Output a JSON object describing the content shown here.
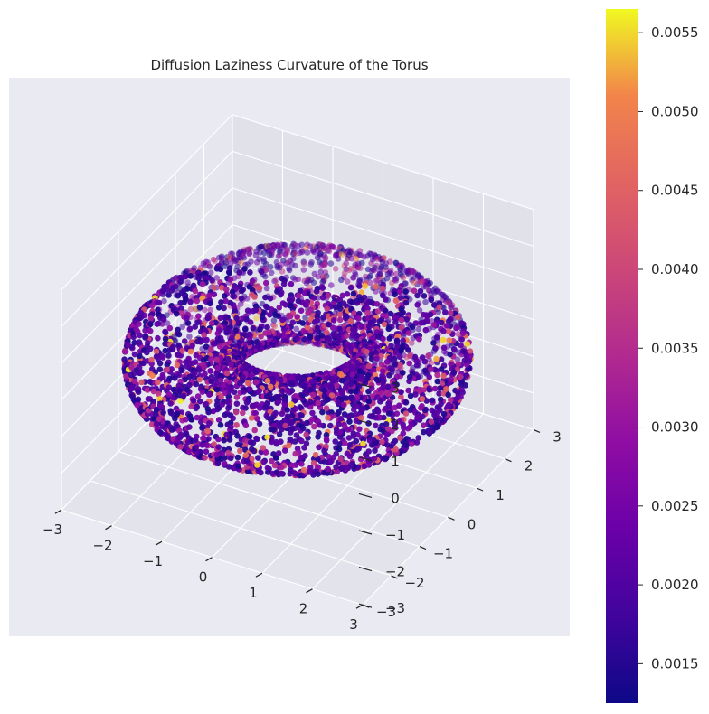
{
  "chart_data": {
    "type": "scatter",
    "projection": "3d",
    "title": "Diffusion Laziness Curvature of the Torus",
    "xlabel": "",
    "ylabel": "",
    "zlabel": "",
    "xlim": [
      -3,
      3
    ],
    "ylim": [
      -3,
      3
    ],
    "zlim": [
      -3,
      3
    ],
    "x_ticks": [
      "−3",
      "−2",
      "−1",
      "0",
      "1",
      "2",
      "3"
    ],
    "y_ticks": [
      "−3",
      "−2",
      "−1",
      "0",
      "1",
      "2",
      "3"
    ],
    "z_ticks": [
      "−3",
      "−2",
      "−1",
      "0",
      "1",
      "2",
      "3"
    ],
    "torus": {
      "major_radius": 2,
      "minor_radius": 1,
      "point_count": 4000
    },
    "colormap": "plasma",
    "color_range": [
      0.00125,
      0.00565
    ],
    "colorbar_ticks": [
      "0.0015",
      "0.0020",
      "0.0025",
      "0.0030",
      "0.0035",
      "0.0040",
      "0.0045",
      "0.0050",
      "0.0055"
    ],
    "colorbar_tick_values": [
      0.0015,
      0.002,
      0.0025,
      0.003,
      0.0035,
      0.004,
      0.0045,
      0.005,
      0.0055
    ],
    "grid": true,
    "colors": {
      "pane": "#eaeaf2",
      "grid": "#ffffff",
      "text": "#262626"
    }
  }
}
